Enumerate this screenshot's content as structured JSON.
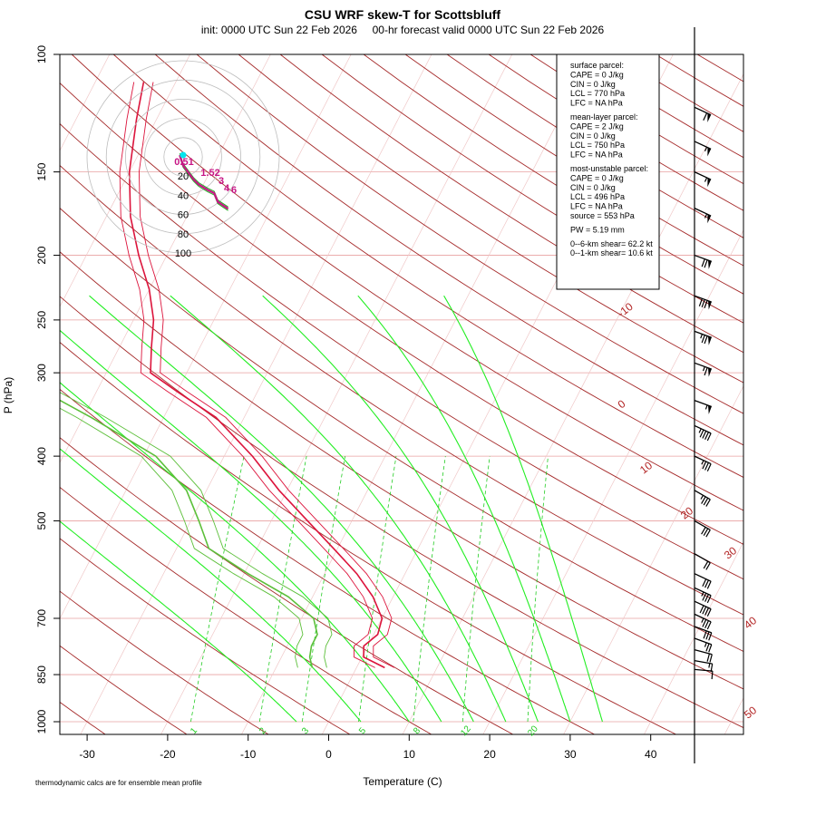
{
  "chart_data": {
    "type": "skew-t",
    "title": "CSU WRF skew-T for Scottsbluff",
    "subtitle": "init: 0000 UTC Sun 22 Feb 2026     00-hr forecast valid 0000 UTC Sun 22 Feb 2026",
    "xlabel": "Temperature (C)",
    "ylabel": "P (hPa)",
    "x_ticks": [
      "-30",
      "-20",
      "-10",
      "0",
      "10",
      "20",
      "30",
      "40"
    ],
    "y_ticks": [
      "100",
      "150",
      "200",
      "250",
      "300",
      "400",
      "500",
      "700",
      "850",
      "1000"
    ],
    "isotherm_labels": [
      "-10",
      "0",
      "10",
      "20",
      "30",
      "40",
      "50"
    ],
    "mixing_ratio_labels": [
      "1",
      "2",
      "3",
      "5",
      "8",
      "12",
      "20"
    ],
    "hodograph_rings": [
      "20",
      "40",
      "60",
      "80",
      "100"
    ],
    "hodograph_point_labels": [
      "0.51",
      "1.52",
      "3",
      "4",
      "6"
    ],
    "footnote": "thermodynamic calcs are for ensemble mean profile",
    "temperature_profile": [
      {
        "p": 830,
        "t": 3.5
      },
      {
        "p": 800,
        "t": 0.2
      },
      {
        "p": 770,
        "t": -0.5
      },
      {
        "p": 740,
        "t": 0.5
      },
      {
        "p": 700,
        "t": 0.0
      },
      {
        "p": 650,
        "t": -2.5
      },
      {
        "p": 600,
        "t": -6.0
      },
      {
        "p": 550,
        "t": -10.5
      },
      {
        "p": 500,
        "t": -15.5
      },
      {
        "p": 450,
        "t": -21.0
      },
      {
        "p": 400,
        "t": -26.5
      },
      {
        "p": 350,
        "t": -33.5
      },
      {
        "p": 320,
        "t": -40.0
      },
      {
        "p": 300,
        "t": -44.5
      },
      {
        "p": 275,
        "t": -46.0
      },
      {
        "p": 250,
        "t": -47.5
      },
      {
        "p": 225,
        "t": -50.0
      },
      {
        "p": 200,
        "t": -53.5
      },
      {
        "p": 175,
        "t": -57.0
      },
      {
        "p": 150,
        "t": -60.0
      },
      {
        "p": 125,
        "t": -62.5
      },
      {
        "p": 110,
        "t": -64.0
      }
    ],
    "dewpoint_profile": [
      {
        "p": 830,
        "t": -5.5
      },
      {
        "p": 800,
        "t": -6.5
      },
      {
        "p": 770,
        "t": -7.0
      },
      {
        "p": 740,
        "t": -7.0
      },
      {
        "p": 700,
        "t": -8.5
      },
      {
        "p": 650,
        "t": -13.0
      },
      {
        "p": 600,
        "t": -19.5
      },
      {
        "p": 550,
        "t": -26.0
      },
      {
        "p": 500,
        "t": -29.0
      },
      {
        "p": 450,
        "t": -32.5
      },
      {
        "p": 400,
        "t": -38.5
      },
      {
        "p": 350,
        "t": -49.0
      },
      {
        "p": 300,
        "t": -62.0
      },
      {
        "p": 250,
        "t": -72.0
      },
      {
        "p": 200,
        "t": -79.5
      },
      {
        "p": 175,
        "t": -84.0
      }
    ],
    "winds": [
      {
        "p": 120,
        "dir": 295,
        "kt": 60
      },
      {
        "p": 135,
        "dir": 295,
        "kt": 55
      },
      {
        "p": 150,
        "dir": 295,
        "kt": 55
      },
      {
        "p": 170,
        "dir": 295,
        "kt": 55
      },
      {
        "p": 200,
        "dir": 290,
        "kt": 70
      },
      {
        "p": 230,
        "dir": 290,
        "kt": 80
      },
      {
        "p": 260,
        "dir": 290,
        "kt": 75
      },
      {
        "p": 290,
        "dir": 290,
        "kt": 65
      },
      {
        "p": 330,
        "dir": 290,
        "kt": 55
      },
      {
        "p": 360,
        "dir": 295,
        "kt": 45
      },
      {
        "p": 400,
        "dir": 295,
        "kt": 35
      },
      {
        "p": 450,
        "dir": 300,
        "kt": 35
      },
      {
        "p": 500,
        "dir": 300,
        "kt": 30
      },
      {
        "p": 560,
        "dir": 300,
        "kt": 20
      },
      {
        "p": 600,
        "dir": 295,
        "kt": 30
      },
      {
        "p": 630,
        "dir": 295,
        "kt": 35
      },
      {
        "p": 660,
        "dir": 295,
        "kt": 40
      },
      {
        "p": 690,
        "dir": 295,
        "kt": 35
      },
      {
        "p": 720,
        "dir": 290,
        "kt": 30
      },
      {
        "p": 750,
        "dir": 290,
        "kt": 25
      },
      {
        "p": 780,
        "dir": 285,
        "kt": 20
      },
      {
        "p": 810,
        "dir": 280,
        "kt": 15
      },
      {
        "p": 835,
        "dir": 275,
        "kt": 10
      }
    ],
    "info_box": [
      "surface parcel:",
      "CAPE = 0 J/kg",
      "CIN = 0 J/kg",
      "LCL = 770 hPa",
      "LFC = NA hPa",
      "",
      "mean-layer parcel:",
      "CAPE = 2 J/kg",
      "CIN = 0 J/kg",
      "LCL = 750 hPa",
      "LFC = NA hPa",
      "",
      "most-unstable parcel:",
      "CAPE = 0 J/kg",
      "CIN = 0 J/kg",
      "LCL = 496 hPa",
      "LFC = NA hPa",
      "source = 553 hPa",
      "",
      "PW =  5.19 mm",
      "",
      "0--6-km shear= 62.2 kt",
      "0--1-km shear= 10.6 kt"
    ],
    "colors": {
      "temperature": "#dc143c",
      "dewpoint": "#5cbf3a",
      "isotherm": "#b22222",
      "pressure_line": "#e8a0a0",
      "dry_adiabat": "#a52a2a",
      "moist_adiabat": "#22ee22",
      "mixing_ratio": "#22cc22",
      "hodograph": "#c71585",
      "hodo_line": "#22aa22",
      "hodo_start": "#00e5ee"
    }
  }
}
